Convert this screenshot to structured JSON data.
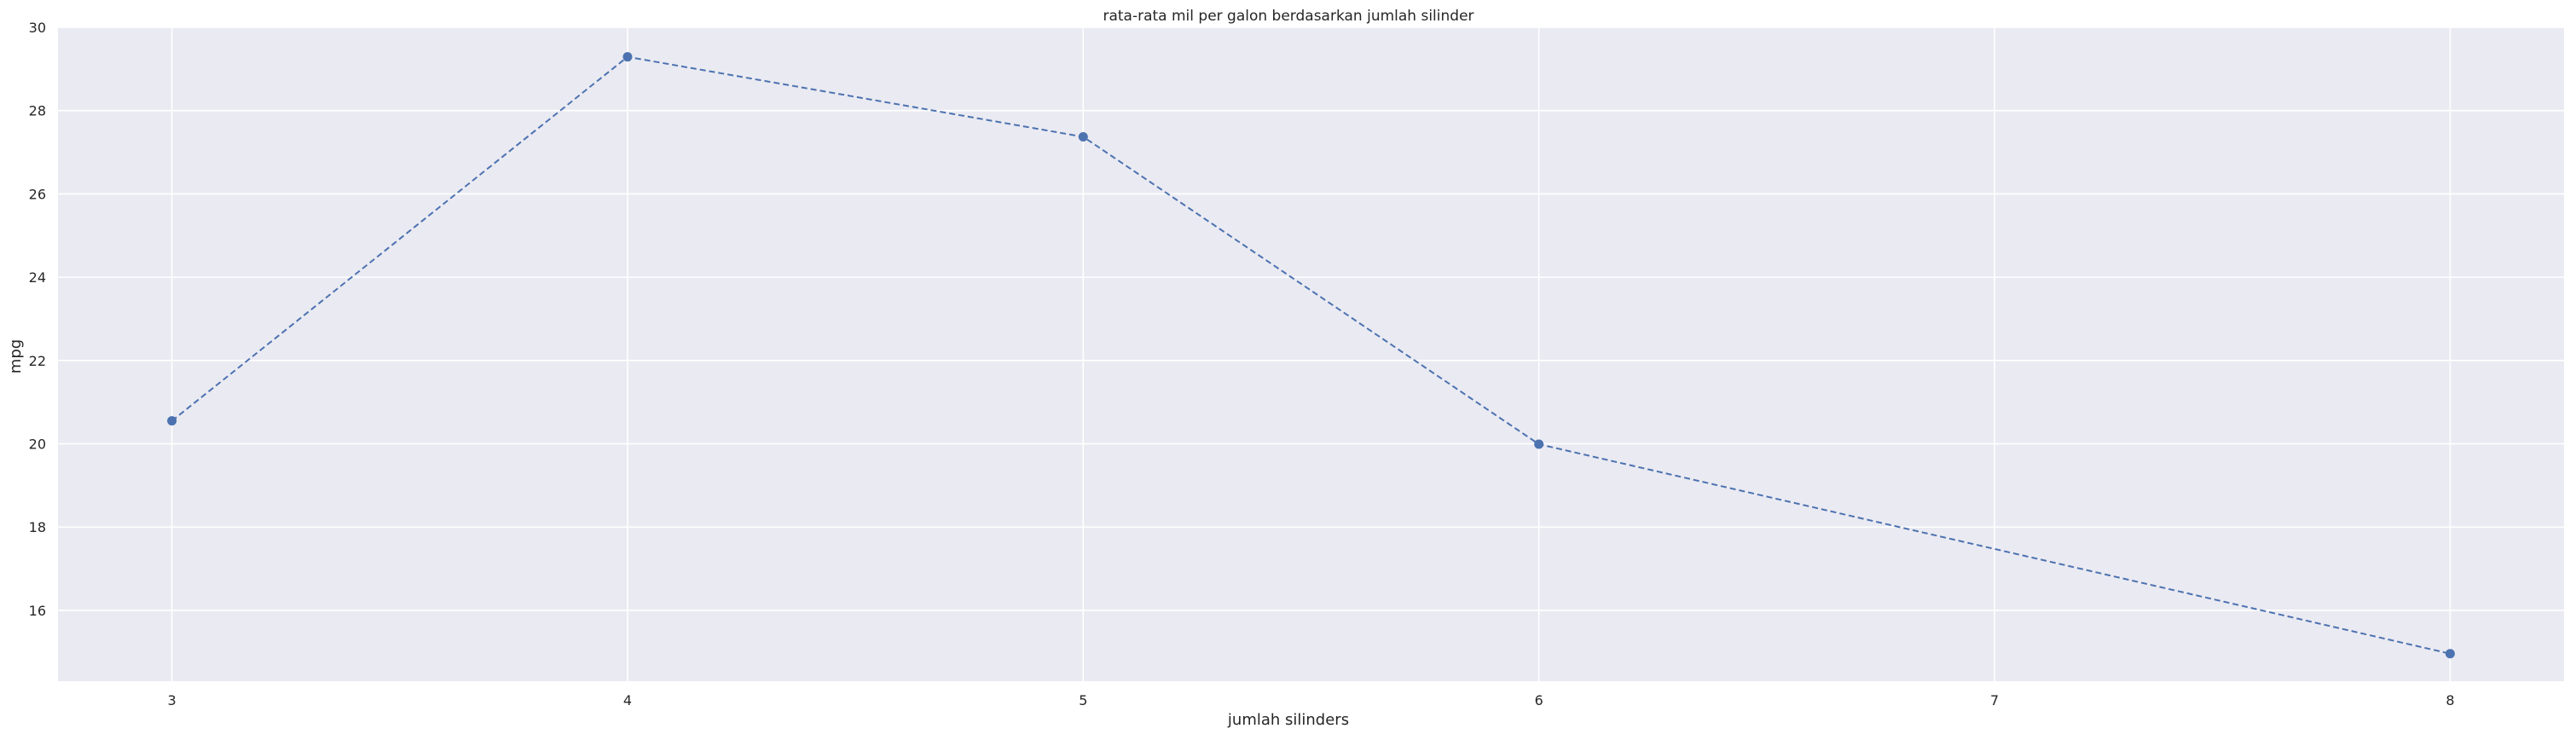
{
  "chart_data": {
    "type": "line",
    "title": "rata-rata mil per galon berdasarkan jumlah silinder",
    "xlabel": "jumlah silinders",
    "ylabel": "mpg",
    "x": [
      3,
      4,
      5,
      6,
      8
    ],
    "series": [
      {
        "values": [
          20.55,
          29.29,
          27.37,
          19.99,
          14.96
        ],
        "color": "#4c72b0",
        "line_style": "dashed",
        "marker": "circle"
      }
    ],
    "xlim": [
      2.75,
      8.25
    ],
    "ylim": [
      14.3,
      30
    ],
    "xticks": [
      3,
      4,
      5,
      6,
      7,
      8
    ],
    "yticks": [
      16,
      18,
      20,
      22,
      24,
      26,
      28,
      30
    ],
    "grid": true,
    "background_color": "#eaeaf2",
    "grid_color": "#ffffff"
  }
}
